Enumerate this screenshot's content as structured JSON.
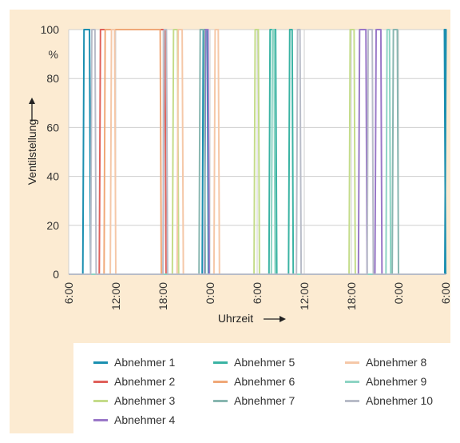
{
  "chart_data": {
    "type": "line",
    "xlabel": "Uhrzeit",
    "ylabel": "Ventilstellung",
    "yunit": "%",
    "ylim": [
      0,
      100
    ],
    "yticks": [
      "0",
      "20",
      "40",
      "60",
      "80",
      "100"
    ],
    "xlim": [
      0,
      48
    ],
    "xticks": [
      "6:00",
      "12:00",
      "18:00",
      "0:00",
      "6:00",
      "12:00",
      "18:00",
      "0:00",
      "6:00"
    ],
    "x_unit_note": "hours since first 6:00 tick",
    "grid": true,
    "legend_position": "bottom",
    "series": [
      {
        "name": "Abnehmer 1",
        "color": "#1b8fb0",
        "open": [
          [
            1.8,
            2.8
          ],
          [
            17.0,
            17.8
          ],
          [
            47.9,
            48.0
          ]
        ]
      },
      {
        "name": "Abnehmer 2",
        "color": "#e0605a",
        "open": [
          [
            3.9,
            12.4
          ]
        ]
      },
      {
        "name": "Abnehmer 3",
        "color": "#c4dc8a",
        "open": [
          [
            13.2,
            14.0
          ],
          [
            23.6,
            24.3
          ],
          [
            35.7,
            36.5
          ]
        ]
      },
      {
        "name": "Abnehmer 4",
        "color": "#9a78c8",
        "open": [
          [
            17.3,
            17.9
          ],
          [
            36.9,
            38.0
          ],
          [
            39.0,
            39.9
          ]
        ]
      },
      {
        "name": "Abnehmer 5",
        "color": "#3ab3a3",
        "open": [
          [
            25.5,
            26.5
          ],
          [
            28.0,
            28.6
          ]
        ]
      },
      {
        "name": "Abnehmer 6",
        "color": "#f0a878",
        "open": [
          [
            4.5,
            11.8
          ]
        ]
      },
      {
        "name": "Abnehmer 7",
        "color": "#88b6b0",
        "open": [
          [
            16.6,
            17.4
          ],
          [
            41.2,
            42.0
          ]
        ]
      },
      {
        "name": "Abnehmer 8",
        "color": "#f5c8a8",
        "open": [
          [
            5.3,
            6.0
          ],
          [
            13.8,
            14.6
          ],
          [
            18.5,
            19.2
          ]
        ]
      },
      {
        "name": "Abnehmer 9",
        "color": "#8ed4c4",
        "open": [
          [
            25.8,
            26.3
          ],
          [
            40.4,
            41.0
          ]
        ]
      },
      {
        "name": "Abnehmer 10",
        "color": "#b8bcc8",
        "open": [
          [
            2.8,
            3.5
          ],
          [
            12.0,
            12.6
          ],
          [
            29.0,
            29.6
          ],
          [
            38.0,
            38.8
          ]
        ]
      }
    ]
  }
}
